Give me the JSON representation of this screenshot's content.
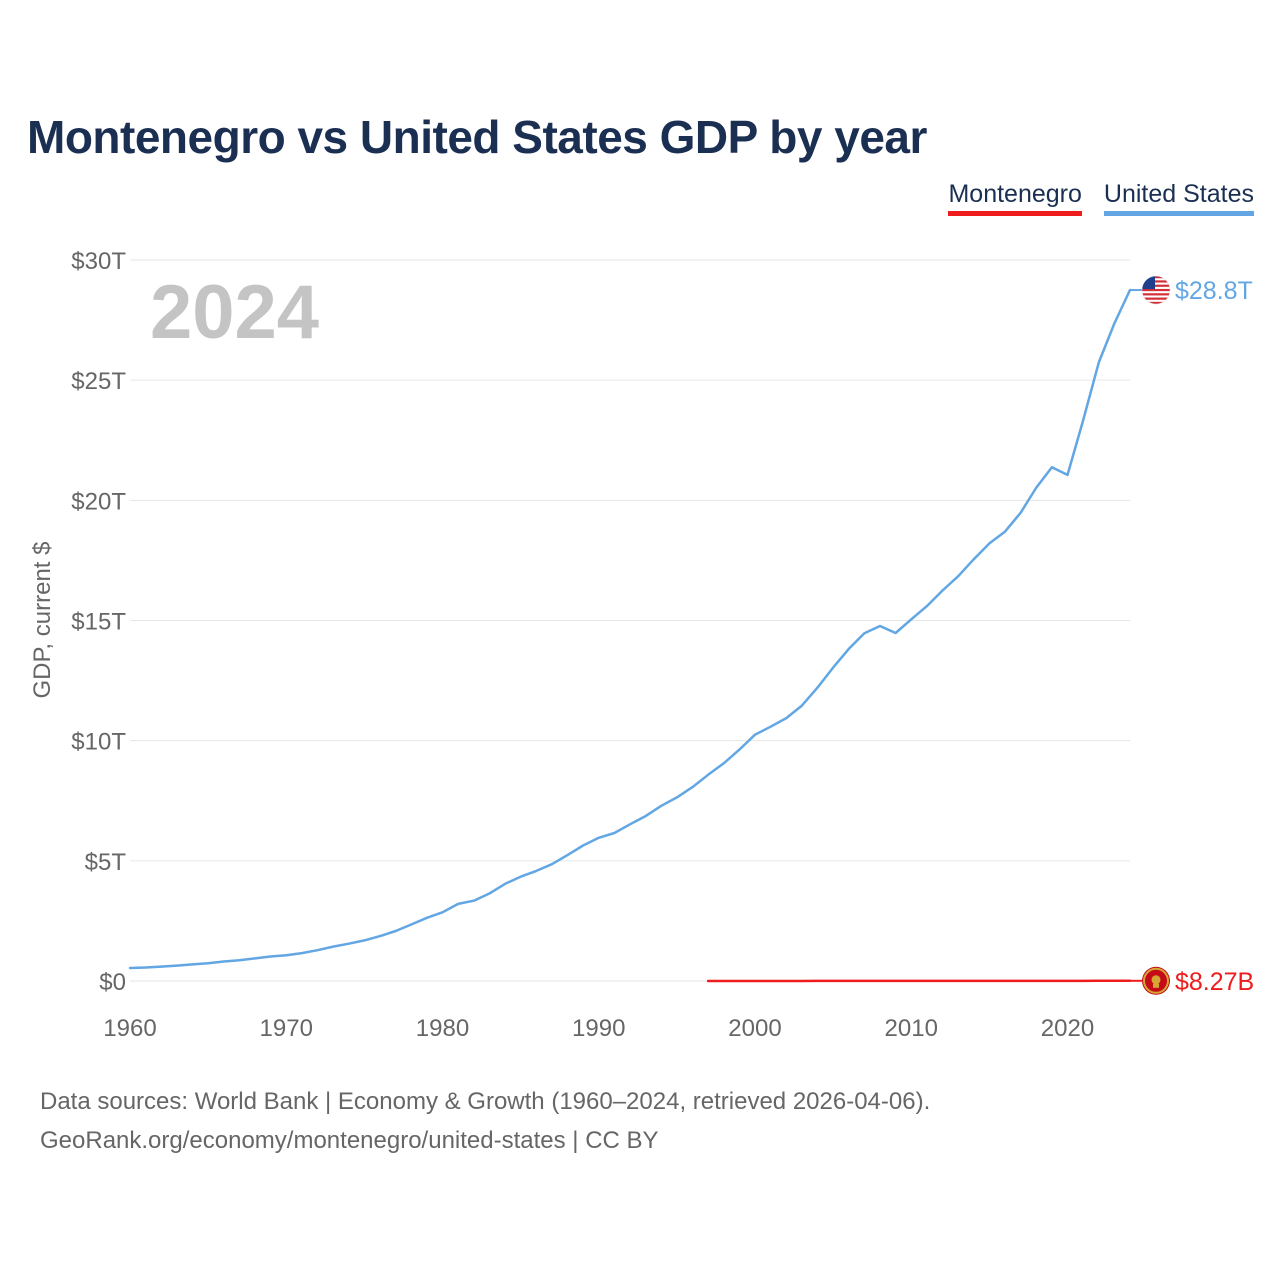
{
  "title": "Montenegro vs United States GDP by year",
  "legend": {
    "montenegro": "Montenegro",
    "united_states": "United States"
  },
  "colors": {
    "montenegro": "#ee1c1c",
    "united_states": "#62a6e4",
    "title": "#1b2f52",
    "axis_text": "#666666",
    "grid": "#e6e6e6",
    "year_watermark": "#c4c4c4"
  },
  "footer": {
    "line1": "Data sources: World Bank | Economy & Growth (1960–2024, retrieved 2026-04-06).",
    "line2": "GeoRank.org/economy/montenegro/united-states | CC BY"
  },
  "chart_data": {
    "type": "line",
    "title": "Montenegro vs United States GDP by year",
    "xlabel": "",
    "ylabel": "GDP, current $",
    "current_year_label": "2024",
    "xlim": [
      1960,
      2024
    ],
    "ylim": [
      0,
      30
    ],
    "y_unit": "trillions of current US$",
    "x_ticks": [
      1960,
      1970,
      1980,
      1990,
      2000,
      2010,
      2020
    ],
    "x_tick_labels": [
      "1960",
      "1970",
      "1980",
      "1990",
      "2000",
      "2010",
      "2020"
    ],
    "y_ticks": [
      0,
      5,
      10,
      15,
      20,
      25,
      30
    ],
    "y_tick_labels": [
      "$0",
      "$5T",
      "$10T",
      "$15T",
      "$20T",
      "$25T",
      "$30T"
    ],
    "grid": true,
    "legend_position": "top-right",
    "series": [
      {
        "name": "United States",
        "color": "#62a6e4",
        "end_label": "$28.8T",
        "icon": "us-flag-icon",
        "x": [
          1960,
          1961,
          1962,
          1963,
          1964,
          1965,
          1966,
          1967,
          1968,
          1969,
          1970,
          1971,
          1972,
          1973,
          1974,
          1975,
          1976,
          1977,
          1978,
          1979,
          1980,
          1981,
          1982,
          1983,
          1984,
          1985,
          1986,
          1987,
          1988,
          1989,
          1990,
          1991,
          1992,
          1993,
          1994,
          1995,
          1996,
          1997,
          1998,
          1999,
          2000,
          2001,
          2002,
          2003,
          2004,
          2005,
          2006,
          2007,
          2008,
          2009,
          2010,
          2011,
          2012,
          2013,
          2014,
          2015,
          2016,
          2017,
          2018,
          2019,
          2020,
          2021,
          2022,
          2023,
          2024
        ],
        "values": [
          0.54,
          0.56,
          0.6,
          0.64,
          0.69,
          0.74,
          0.81,
          0.86,
          0.94,
          1.02,
          1.07,
          1.16,
          1.28,
          1.43,
          1.55,
          1.69,
          1.87,
          2.08,
          2.35,
          2.63,
          2.86,
          3.21,
          3.34,
          3.64,
          4.04,
          4.34,
          4.58,
          4.86,
          5.24,
          5.64,
          5.96,
          6.16,
          6.52,
          6.86,
          7.29,
          7.64,
          8.07,
          8.58,
          9.06,
          9.63,
          10.25,
          10.58,
          10.94,
          11.46,
          12.21,
          13.04,
          13.82,
          14.47,
          14.77,
          14.48,
          15.05,
          15.6,
          16.25,
          16.84,
          17.55,
          18.21,
          18.7,
          19.48,
          20.53,
          21.38,
          21.06,
          23.32,
          25.74,
          27.36,
          28.75
        ]
      },
      {
        "name": "Montenegro",
        "color": "#ee1c1c",
        "end_label": "$8.27B",
        "icon": "montenegro-flag-icon",
        "x": [
          1997,
          1998,
          1999,
          2000,
          2001,
          2002,
          2003,
          2004,
          2005,
          2006,
          2007,
          2008,
          2009,
          2010,
          2011,
          2012,
          2013,
          2014,
          2015,
          2016,
          2017,
          2018,
          2019,
          2020,
          2021,
          2022,
          2023,
          2024
        ],
        "values": [
          0.0015,
          0.0016,
          0.0016,
          0.0011,
          0.0012,
          0.0013,
          0.0017,
          0.0021,
          0.0023,
          0.0027,
          0.0037,
          0.0045,
          0.0042,
          0.0041,
          0.0045,
          0.0041,
          0.0045,
          0.0046,
          0.004,
          0.0042,
          0.0045,
          0.0055,
          0.0055,
          0.0048,
          0.0059,
          0.0064,
          0.0075,
          0.00827
        ]
      }
    ]
  }
}
